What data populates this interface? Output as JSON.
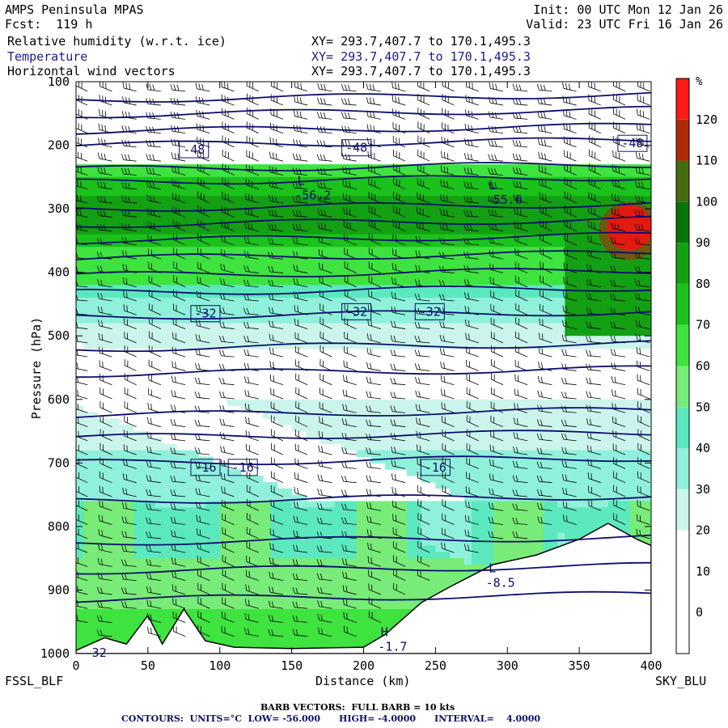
{
  "header": {
    "model": "AMPS Peninsula MPAS",
    "fcst": "Fcst:  119 h",
    "init": "Init: 00 UTC Mon 12 Jan 26",
    "valid": "Valid: 23 UTC Fri 16 Jan 26"
  },
  "fields": [
    {
      "name": "Relative humidity (w.r.t. ice)",
      "xy": "XY= 293.7,407.7 to 170.1,495.3",
      "color": "#000000"
    },
    {
      "name": "Temperature",
      "xy": "XY= 293.7,407.7 to 170.1,495.3",
      "color": "#1a1a8c"
    },
    {
      "name": "Horizontal wind vectors",
      "xy": "XY= 293.7,407.7 to 170.1,495.3",
      "color": "#000000"
    }
  ],
  "chart_data": {
    "type": "heatmap",
    "xlabel": "Distance (km)",
    "ylabel": "Pressure (hPa)",
    "xlim": [
      0,
      400
    ],
    "ylim": [
      100,
      1000
    ],
    "x_ticks": [
      "0",
      "50",
      "100",
      "150",
      "200",
      "250",
      "300",
      "350",
      "400"
    ],
    "y_ticks": [
      "100",
      "200",
      "300",
      "400",
      "500",
      "600",
      "700",
      "800",
      "900",
      "1000"
    ],
    "left_endpoint": "FSSL_BLF",
    "right_endpoint": "SKY_BLU",
    "colorbar": {
      "unit": "%",
      "levels": [
        "120",
        "110",
        "100",
        "90",
        "80",
        "70",
        "60",
        "50",
        "40",
        "30",
        "20",
        "10",
        "0"
      ],
      "colors": [
        "#ffffff",
        "#ffffff",
        "#ffffff",
        "#cbf5ec",
        "#8ff0db",
        "#5ce8bf",
        "#78eb78",
        "#3fe33f",
        "#1bc21b",
        "#13a013",
        "#0a740a",
        "#466b10",
        "#b02a0a",
        "#ff1a1a"
      ]
    },
    "temperature_contours": {
      "units": "°C",
      "low": -56,
      "high": -4,
      "interval": 4,
      "labels": [
        {
          "text": "-48",
          "x": 82,
          "p": 207
        },
        {
          "text": "-48",
          "x": 195,
          "p": 204
        },
        {
          "text": "-48",
          "x": 387,
          "p": 197
        },
        {
          "text": "-32",
          "x": 90,
          "p": 465
        },
        {
          "text": "-32",
          "x": 195,
          "p": 462
        },
        {
          "text": "-32",
          "x": 246,
          "p": 462
        },
        {
          "text": "-16",
          "x": 90,
          "p": 707
        },
        {
          "text": "-16",
          "x": 116,
          "p": 707
        },
        {
          "text": "-16",
          "x": 250,
          "p": 707
        }
      ],
      "extrema": [
        {
          "type": "L",
          "value": "-56.2",
          "x": 152,
          "p": 270
        },
        {
          "type": "L",
          "value": "-55.6",
          "x": 285,
          "p": 277
        },
        {
          "type": "L",
          "value": "-8.5",
          "x": 285,
          "p": 880
        },
        {
          "type": "H",
          "value": "-1.7",
          "x": 210,
          "p": 980
        },
        {
          "type": "",
          "value": "-32",
          "x": 6,
          "p": 990
        }
      ]
    },
    "barb_vectors": "BARB VECTORS:  FULL BARB = 10 kts"
  },
  "footer": {
    "barbs": "BARB VECTORS:  FULL BARB = 10 kts",
    "contours": "CONTOURS:  UNITS=°C  LOW= -56.000      HIGH= -4.0000      INTERVAL=    4.0000"
  }
}
